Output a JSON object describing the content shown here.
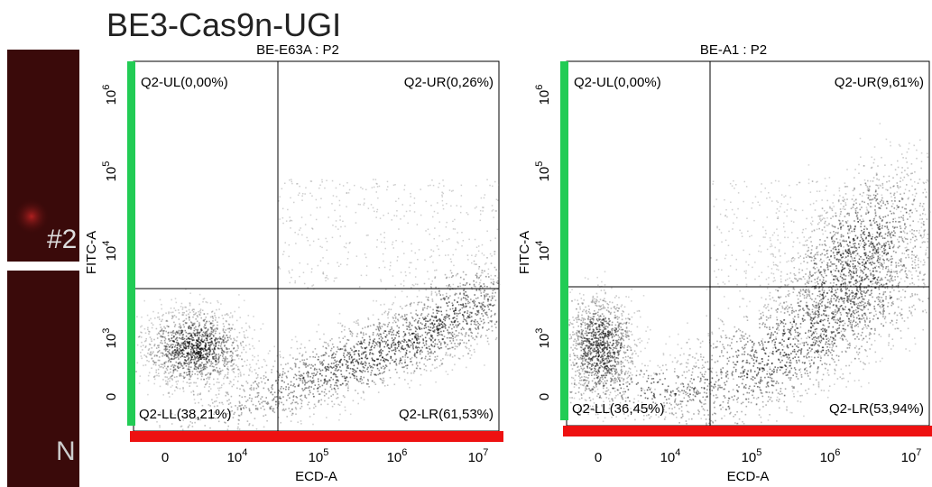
{
  "figure_title": "BE3-Cas9n-UGI",
  "side_labels": [
    "#2",
    "N"
  ],
  "panels": [
    {
      "title": "BE-E63A : P2",
      "x_label": "ECD-A",
      "y_label": "FITC-A",
      "quadrants": {
        "ul": "Q2-UL(0,00%)",
        "ur": "Q2-UR(0,26%)",
        "ll": "Q2-LL(38,21%)",
        "lr": "Q2-LR(61,53%)"
      },
      "x_ticks": [
        {
          "base": "0",
          "exp": ""
        },
        {
          "base": "10",
          "exp": "4"
        },
        {
          "base": "10",
          "exp": "5"
        },
        {
          "base": "10",
          "exp": "6"
        },
        {
          "base": "10",
          "exp": "7"
        }
      ],
      "y_ticks": [
        {
          "base": "0",
          "exp": ""
        },
        {
          "base": "10",
          "exp": "3"
        },
        {
          "base": "10",
          "exp": "4"
        },
        {
          "base": "10",
          "exp": "5"
        },
        {
          "base": "10",
          "exp": "6"
        }
      ]
    },
    {
      "title": "BE-A1 : P2",
      "x_label": "ECD-A",
      "y_label": "FITC-A",
      "quadrants": {
        "ul": "Q2-UL(0,00%)",
        "ur": "Q2-UR(9,61%)",
        "ll": "Q2-LL(36,45%)",
        "lr": "Q2-LR(53,94%)"
      },
      "x_ticks": [
        {
          "base": "0",
          "exp": ""
        },
        {
          "base": "10",
          "exp": "4"
        },
        {
          "base": "10",
          "exp": "5"
        },
        {
          "base": "10",
          "exp": "6"
        },
        {
          "base": "10",
          "exp": "7"
        }
      ],
      "y_ticks": [
        {
          "base": "0",
          "exp": ""
        },
        {
          "base": "10",
          "exp": "3"
        },
        {
          "base": "10",
          "exp": "4"
        },
        {
          "base": "10",
          "exp": "5"
        },
        {
          "base": "10",
          "exp": "6"
        }
      ]
    }
  ]
}
